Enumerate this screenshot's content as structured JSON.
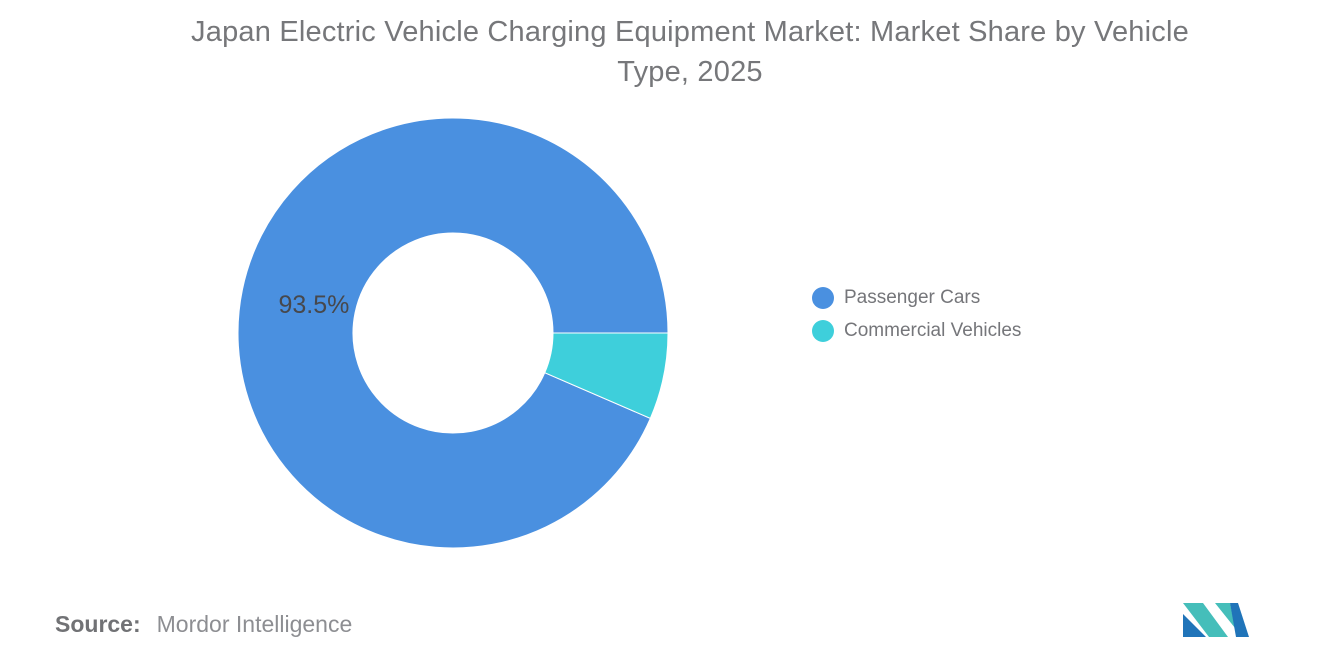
{
  "title": {
    "line1": "Japan Electric Vehicle Charging Equipment Market: Market Share by Vehicle",
    "line2": "Type, 2025"
  },
  "chart_data": {
    "type": "pie",
    "subtype": "donut",
    "title": "Japan Electric Vehicle Charging Equipment Market: Market Share by Vehicle Type, 2025",
    "unit": "%",
    "series": [
      {
        "name": "Passenger Cars",
        "value": 93.5,
        "color": "#4A90E0",
        "label": "93.5%"
      },
      {
        "name": "Commercial Vehicles",
        "value": 6.5,
        "color": "#3ECFDB",
        "label": ""
      }
    ],
    "start_angle_deg": 23.4,
    "legend_position": "right",
    "background": "#ffffff",
    "layout": {
      "outer_radius_px": 215,
      "inner_radius_px": 100,
      "label_radius_px": 142,
      "label_color": "#47484C",
      "label_font_px": 25,
      "slice_border_color": "#ffffff",
      "slice_border_px": 1
    }
  },
  "source": {
    "prefix": "Source:",
    "text": "Mordor Intelligence"
  },
  "branding": {
    "logo_name": "mordor-intelligence-logo",
    "teal": "#45BEBA",
    "blue": "#2074B9"
  }
}
